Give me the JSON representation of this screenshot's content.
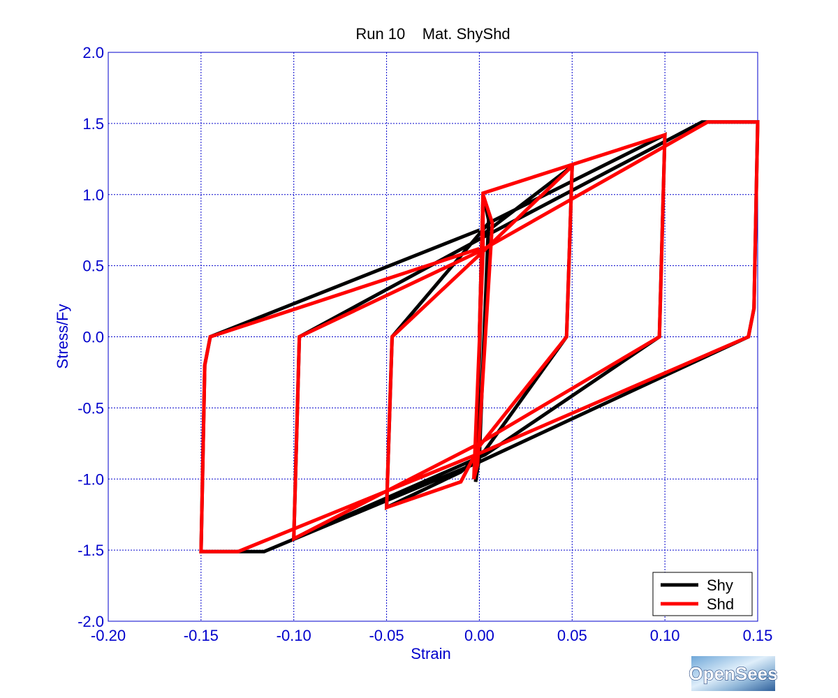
{
  "chart_data": {
    "type": "line",
    "title": "Run 10    Mat. ShyShd",
    "xlabel": "Strain",
    "ylabel": "Stress/Fy",
    "xlim": [
      -0.2,
      0.15
    ],
    "ylim": [
      -2.0,
      2.0
    ],
    "xticks": [
      -0.2,
      -0.15,
      -0.1,
      -0.05,
      0.0,
      0.05,
      0.1,
      0.15
    ],
    "yticks": [
      -2.0,
      -1.5,
      -1.0,
      -0.5,
      0.0,
      0.5,
      1.0,
      1.5,
      2.0
    ],
    "xtick_labels": [
      "-0.20",
      "-0.15",
      "-0.10",
      "-0.05",
      "0.00",
      "0.05",
      "0.10",
      "0.15"
    ],
    "ytick_labels": [
      "-2.0",
      "-1.5",
      "-1.0",
      "-0.5",
      "0.0",
      "0.5",
      "1.0",
      "1.5",
      "2.0"
    ],
    "grid": true,
    "legend_position": "bottom-right",
    "series": [
      {
        "name": "Shy",
        "color": "#000000",
        "points": [
          [
            0.0,
            0.0
          ],
          [
            0.002,
            1.0
          ],
          [
            0.005,
            0.82
          ],
          [
            0.0,
            -0.85
          ],
          [
            -0.002,
            -1.02
          ],
          [
            0.002,
            0.72
          ],
          [
            0.05,
            1.2
          ],
          [
            0.047,
            0.0
          ],
          [
            0.003,
            -0.8
          ],
          [
            -0.01,
            -0.95
          ],
          [
            -0.05,
            -1.2
          ],
          [
            -0.047,
            0.0
          ],
          [
            0.005,
            0.8
          ],
          [
            0.1,
            1.42
          ],
          [
            0.097,
            0.0
          ],
          [
            0.003,
            -0.83
          ],
          [
            -0.1,
            -1.42
          ],
          [
            -0.097,
            0.0
          ],
          [
            0.002,
            0.7
          ],
          [
            0.12,
            1.51
          ],
          [
            0.15,
            1.51
          ],
          [
            0.148,
            0.2
          ],
          [
            0.145,
            0.0
          ],
          [
            0.0,
            -0.88
          ],
          [
            -0.116,
            -1.51
          ],
          [
            -0.15,
            -1.51
          ],
          [
            -0.148,
            -0.2
          ],
          [
            -0.145,
            0.0
          ],
          [
            0.0,
            0.75
          ]
        ]
      },
      {
        "name": "Shd",
        "color": "#ff0000",
        "points": [
          [
            0.0,
            0.0
          ],
          [
            0.002,
            1.0
          ],
          [
            0.007,
            0.8
          ],
          [
            -0.001,
            -0.9
          ],
          [
            -0.003,
            -1.0
          ],
          [
            0.002,
            0.6
          ],
          [
            0.05,
            1.2
          ],
          [
            0.047,
            0.0
          ],
          [
            0.0,
            -0.77
          ],
          [
            -0.01,
            -1.02
          ],
          [
            -0.05,
            -1.2
          ],
          [
            -0.047,
            0.0
          ],
          [
            0.002,
            0.6
          ],
          [
            0.002,
            1.01
          ],
          [
            0.1,
            1.42
          ],
          [
            0.097,
            0.0
          ],
          [
            0.0,
            -0.75
          ],
          [
            -0.1,
            -1.42
          ],
          [
            -0.097,
            0.0
          ],
          [
            0.0,
            0.6
          ],
          [
            0.123,
            1.51
          ],
          [
            0.15,
            1.51
          ],
          [
            0.148,
            0.2
          ],
          [
            0.145,
            0.0
          ],
          [
            0.0,
            -0.82
          ],
          [
            -0.13,
            -1.51
          ],
          [
            -0.15,
            -1.51
          ],
          [
            -0.148,
            -0.2
          ],
          [
            -0.145,
            0.0
          ],
          [
            0.0,
            0.62
          ]
        ]
      }
    ]
  },
  "logo": {
    "text": "OpenSees"
  },
  "colors": {
    "axis": "#0000cc",
    "grid": "#0000cc",
    "background": "#ffffff"
  }
}
